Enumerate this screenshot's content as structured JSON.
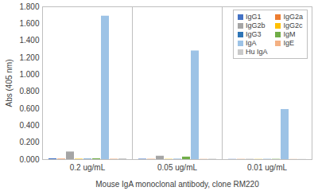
{
  "chart_data": {
    "type": "bar",
    "x_label": "Mouse IgA monoclonal antibody, clone RM220",
    "y_label": "Abs (405 nm)",
    "categories": [
      "0.2 ug/mL",
      "0.05 ug/mL",
      "0.01 ug/mL"
    ],
    "series": [
      {
        "name": "IgG1",
        "color": "#4472c4",
        "values": [
          0.01,
          0.005,
          0.002
        ]
      },
      {
        "name": "IgG2a",
        "color": "#ed7d31",
        "values": [
          0.005,
          0.003,
          0.002
        ]
      },
      {
        "name": "IgG2b",
        "color": "#a5a5a5",
        "values": [
          0.09,
          0.04,
          0.003
        ]
      },
      {
        "name": "IgG2c",
        "color": "#ffc000",
        "values": [
          0.005,
          0.003,
          0.002
        ]
      },
      {
        "name": "IgG3",
        "color": "#2e75b6",
        "values": [
          0.005,
          0.003,
          0.002
        ]
      },
      {
        "name": "IgM",
        "color": "#70ad47",
        "values": [
          0.01,
          0.03,
          0.003
        ]
      },
      {
        "name": "IgA",
        "color": "#9dc3e6",
        "values": [
          1.69,
          1.28,
          0.59
        ]
      },
      {
        "name": "IgE",
        "color": "#f4b183",
        "values": [
          0.005,
          0.003,
          0.002
        ]
      },
      {
        "name": "Hu IgA",
        "color": "#c9c9c9",
        "values": [
          0.01,
          0.005,
          0.002
        ]
      }
    ],
    "ylim": [
      0,
      1.8
    ],
    "yticks": [
      {
        "value": 0,
        "label": "0.000"
      },
      {
        "value": 0.2,
        "label": "0.200"
      },
      {
        "value": 0.4,
        "label": "0.400"
      },
      {
        "value": 0.6,
        "label": "0.600"
      },
      {
        "value": 0.8,
        "label": "0.800"
      },
      {
        "value": 1.0,
        "label": "1.000"
      },
      {
        "value": 1.2,
        "label": "1.200"
      },
      {
        "value": 1.4,
        "label": "1.400"
      },
      {
        "value": 1.6,
        "label": "1.600"
      },
      {
        "value": 1.8,
        "label": "1.800"
      }
    ],
    "legend": "top-right",
    "grid": false
  }
}
